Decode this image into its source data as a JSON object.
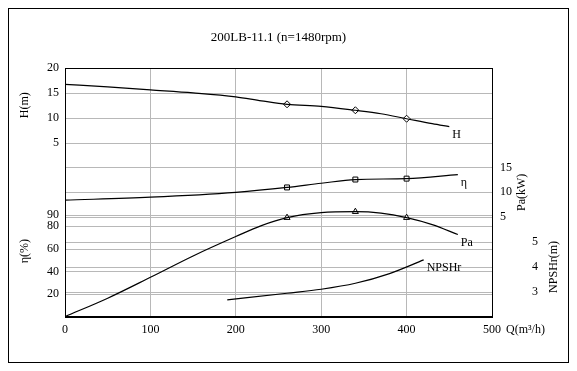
{
  "chart_data": {
    "type": "line",
    "title": "200LB-11.1 (n=1480rpm)",
    "xlabel": "Q(m³/h)",
    "ylabel": "H(m)",
    "y2label": "η(%)",
    "y3label": "Pa(kW)",
    "y4label": "NPSHr(m)",
    "xlim": [
      0,
      500
    ],
    "xticks": [
      0,
      100,
      200,
      300,
      400,
      500
    ],
    "ylim": [
      -30,
      20
    ],
    "yticks": [
      5,
      10,
      15,
      20
    ],
    "y2lim": [
      0,
      220
    ],
    "y2ticks": [
      20,
      40,
      60,
      80,
      90
    ],
    "y3lim": [
      -15,
      35
    ],
    "y3ticks": [
      5,
      10,
      15
    ],
    "y4lim": [
      2,
      12
    ],
    "y4ticks": [
      3,
      4,
      5
    ],
    "grid": true,
    "series": [
      {
        "name": "H",
        "color": "#000000",
        "axis": "y",
        "marker": "none",
        "line_style": "solid",
        "x": [
          0,
          50,
          100,
          150,
          200,
          230,
          260,
          300,
          340,
          370,
          400,
          430,
          450
        ],
        "values": [
          16.7,
          16.2,
          15.6,
          15.0,
          14.2,
          13.4,
          12.7,
          12.3,
          11.5,
          10.8,
          9.8,
          8.8,
          8.2
        ]
      },
      {
        "type": "scatter",
        "color": "#000000",
        "axis": "y",
        "marker": "diamond",
        "x": [
          260,
          340,
          400
        ],
        "values": [
          12.7,
          11.5,
          9.8
        ]
      },
      {
        "name": "η",
        "color": "#000000",
        "axis": "y2",
        "marker": "none",
        "line_style": "solid",
        "x": [
          0,
          100,
          200,
          260,
          300,
          340,
          400,
          460
        ],
        "values": [
          103,
          105.7,
          110,
          114.3,
          118,
          121.3,
          122.1,
          125.6
        ]
      },
      {
        "type": "scatter",
        "color": "#000000",
        "axis": "y2",
        "marker": "square",
        "x": [
          260,
          340,
          400
        ],
        "values": [
          114.3,
          121.3,
          122.1
        ]
      },
      {
        "name": "Pa",
        "color": "#000000",
        "axis": "y3",
        "marker": "none",
        "line_style": "solid",
        "x": [
          0,
          50,
          100,
          150,
          200,
          230,
          260,
          300,
          340,
          370,
          400,
          430,
          460
        ],
        "values": [
          -15,
          -11.3,
          -7.1,
          -2.8,
          1.1,
          3.3,
          4.9,
          5.9,
          6.1,
          5.8,
          4.9,
          3.5,
          1.5
        ]
      },
      {
        "type": "scatter",
        "color": "#000000",
        "axis": "y3",
        "marker": "triangle",
        "x": [
          260,
          340,
          400
        ],
        "values": [
          4.9,
          6.1,
          4.9
        ]
      },
      {
        "name": "NPSHr",
        "color": "#000000",
        "axis": "y4",
        "marker": "none",
        "line_style": "solid",
        "x": [
          190,
          260,
          300,
          340,
          380,
          420
        ],
        "values": [
          2.67,
          2.94,
          3.1,
          3.34,
          3.73,
          4.28
        ]
      }
    ]
  }
}
